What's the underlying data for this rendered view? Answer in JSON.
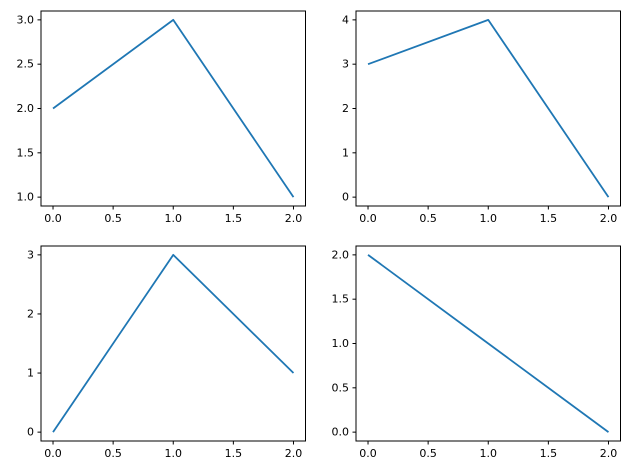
{
  "figure": {
    "background": "#ffffff",
    "spine_color": "#000000",
    "tick_color": "#000000",
    "tick_label_color": "#000000"
  },
  "chart_data": [
    {
      "id": "subplot-top-left",
      "type": "line",
      "title": "",
      "xlabel": "",
      "ylabel": "",
      "x": [
        0,
        1,
        2
      ],
      "y": [
        2,
        3,
        1
      ],
      "xlim": [
        -0.1,
        2.1
      ],
      "ylim": [
        0.9,
        3.1
      ],
      "xticks": [
        0.0,
        0.5,
        1.0,
        1.5,
        2.0
      ],
      "xtick_labels": [
        "0.0",
        "0.5",
        "1.0",
        "1.5",
        "2.0"
      ],
      "yticks": [
        1.0,
        1.5,
        2.0,
        2.5,
        3.0
      ],
      "ytick_labels": [
        "1.0",
        "1.5",
        "2.0",
        "2.5",
        "3.0"
      ],
      "line_color": "#1f77b4",
      "grid": false,
      "legend": null
    },
    {
      "id": "subplot-top-right",
      "type": "line",
      "title": "",
      "xlabel": "",
      "ylabel": "",
      "x": [
        0,
        1,
        2
      ],
      "y": [
        3,
        4,
        0
      ],
      "xlim": [
        -0.1,
        2.1
      ],
      "ylim": [
        -0.2,
        4.2
      ],
      "xticks": [
        0.0,
        0.5,
        1.0,
        1.5,
        2.0
      ],
      "xtick_labels": [
        "0.0",
        "0.5",
        "1.0",
        "1.5",
        "2.0"
      ],
      "yticks": [
        0,
        1,
        2,
        3,
        4
      ],
      "ytick_labels": [
        "0",
        "1",
        "2",
        "3",
        "4"
      ],
      "line_color": "#1f77b4",
      "grid": false,
      "legend": null
    },
    {
      "id": "subplot-bottom-left",
      "type": "line",
      "title": "",
      "xlabel": "",
      "ylabel": "",
      "x": [
        0,
        1,
        2
      ],
      "y": [
        0,
        3,
        1
      ],
      "xlim": [
        -0.1,
        2.1
      ],
      "ylim": [
        -0.15,
        3.15
      ],
      "xticks": [
        0.0,
        0.5,
        1.0,
        1.5,
        2.0
      ],
      "xtick_labels": [
        "0.0",
        "0.5",
        "1.0",
        "1.5",
        "2.0"
      ],
      "yticks": [
        0,
        1,
        2,
        3
      ],
      "ytick_labels": [
        "0",
        "1",
        "2",
        "3"
      ],
      "line_color": "#1f77b4",
      "grid": false,
      "legend": null
    },
    {
      "id": "subplot-bottom-right",
      "type": "line",
      "title": "",
      "xlabel": "",
      "ylabel": "",
      "x": [
        0,
        1,
        2
      ],
      "y": [
        2,
        1,
        0
      ],
      "xlim": [
        -0.1,
        2.1
      ],
      "ylim": [
        -0.1,
        2.1
      ],
      "xticks": [
        0.0,
        0.5,
        1.0,
        1.5,
        2.0
      ],
      "xtick_labels": [
        "0.0",
        "0.5",
        "1.0",
        "1.5",
        "2.0"
      ],
      "yticks": [
        0.0,
        0.5,
        1.0,
        1.5,
        2.0
      ],
      "ytick_labels": [
        "0.0",
        "0.5",
        "1.0",
        "1.5",
        "2.0"
      ],
      "line_color": "#1f77b4",
      "grid": false,
      "legend": null
    }
  ]
}
